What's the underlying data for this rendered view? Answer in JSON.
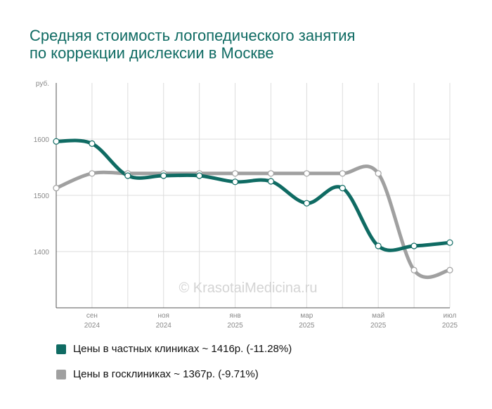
{
  "title_lines": [
    "Средняя стоимость логопедического занятия",
    "по коррекции дислексии в Москве"
  ],
  "watermark": "© KrasotaiMedicina.ru",
  "chart_data": {
    "type": "line",
    "y_unit": "руб.",
    "ylim": [
      1300,
      1700
    ],
    "yticks": [
      1400,
      1500,
      1600
    ],
    "grid": true,
    "legend_position": "bottom",
    "x_labels": [
      {
        "month": "сен",
        "year": "2024",
        "x": 1
      },
      {
        "month": "ноя",
        "year": "2024",
        "x": 3
      },
      {
        "month": "янв",
        "year": "2025",
        "x": 5
      },
      {
        "month": "мар",
        "year": "2025",
        "x": 7
      },
      {
        "month": "май",
        "year": "2025",
        "x": 9
      },
      {
        "month": "июл",
        "year": "2025",
        "x": 11
      }
    ],
    "x_count": 12,
    "series": [
      {
        "legend": "Цены в частных клиниках ~ 1416р. (-11.28%)",
        "color": "#0f6b63",
        "values": [
          1596,
          1592,
          1535,
          1535,
          1535,
          1524,
          1525,
          1486,
          1513,
          1410,
          1410,
          1416
        ]
      },
      {
        "legend": "Цены в госклиниках ~ 1367р. (-9.71%)",
        "color": "#a0a0a0",
        "values": [
          1513,
          1539,
          1539,
          1539,
          1539,
          1539,
          1539,
          1539,
          1539,
          1539,
          1367,
          1367
        ]
      }
    ]
  }
}
